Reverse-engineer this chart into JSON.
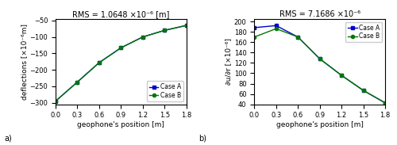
{
  "left_title": "RMS = 1.0648 ×10⁻⁶ [m]",
  "right_title": "RMS = 7.1686 ×10⁻⁶",
  "x": [
    0,
    0.3,
    0.6,
    0.9,
    1.2,
    1.5,
    1.8
  ],
  "left_caseA": [
    -295,
    -237,
    -178,
    -133,
    -100,
    -80,
    -65
  ],
  "left_caseB": [
    -295,
    -237,
    -178,
    -133,
    -100,
    -80,
    -65
  ],
  "right_caseA": [
    188,
    192,
    170,
    128,
    96,
    67,
    43
  ],
  "right_caseB": [
    170,
    186,
    170,
    128,
    96,
    67,
    43
  ],
  "left_ylabel": "deflections [×10⁻⁶m]",
  "right_ylabel": "∂u/∂r [×10⁻⁶]",
  "xlabel": "geophone's position [m]",
  "color_A": "#0000cc",
  "color_B": "#007700",
  "left_ylim": [
    -305,
    -45
  ],
  "right_ylim": [
    40,
    205
  ],
  "left_yticks": [
    -300,
    -250,
    -200,
    -150,
    -100,
    -50
  ],
  "right_yticks": [
    40,
    60,
    80,
    100,
    120,
    140,
    160,
    180,
    200
  ],
  "xlim": [
    0,
    1.8
  ],
  "xticks": [
    0,
    0.3,
    0.6,
    0.9,
    1.2,
    1.5,
    1.8
  ]
}
